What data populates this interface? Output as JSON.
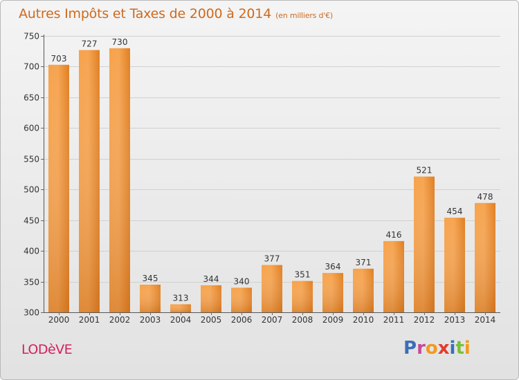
{
  "title": "Autres Impôts et Taxes de 2000 à 2014",
  "subtitle": "(en milliers d'€)",
  "location": "LODèVE",
  "brand": "Proxiti",
  "colors": {
    "bar": "#f08a2a",
    "bar_light": "#f7b060",
    "title": "#cc6a1e",
    "location": "#d4205c"
  },
  "chart_data": {
    "type": "bar",
    "title": "Autres Impôts et Taxes de 2000 à 2014",
    "subtitle": "(en milliers d'€)",
    "categories": [
      "2000",
      "2001",
      "2002",
      "2003",
      "2004",
      "2005",
      "2006",
      "2007",
      "2008",
      "2009",
      "2010",
      "2011",
      "2012",
      "2013",
      "2014"
    ],
    "values": [
      703,
      727,
      730,
      345,
      313,
      344,
      340,
      377,
      351,
      364,
      371,
      416,
      521,
      454,
      478
    ],
    "ylim": [
      300,
      750
    ],
    "yticks": [
      300,
      350,
      400,
      450,
      500,
      550,
      600,
      650,
      700,
      750
    ],
    "grid": true,
    "legend": "none"
  }
}
